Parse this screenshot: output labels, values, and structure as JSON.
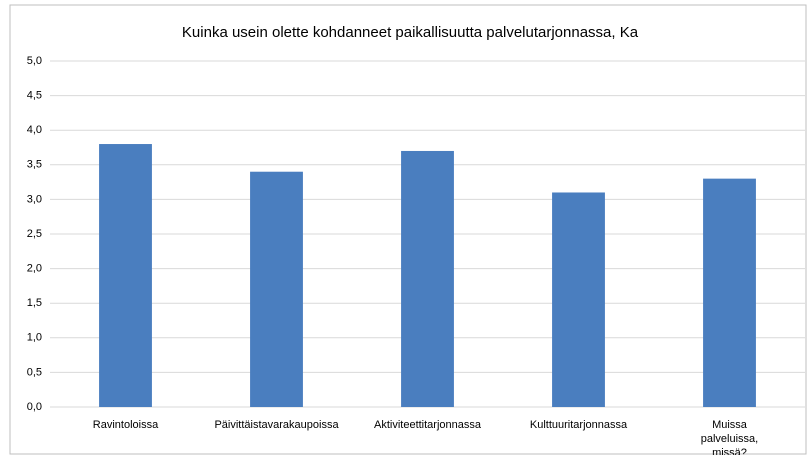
{
  "chart_data": {
    "type": "bar",
    "title": "Kuinka usein olette kohdanneet paikallisuutta palvelutarjonnassa, Ka",
    "categories": [
      "Ravintoloissa",
      "Päivittäistavarakaupoissa",
      "Aktiviteettitarjonnassa",
      "Kulttuuritarjonnassa",
      "Muissa palveluissa, missä?"
    ],
    "values": [
      3.8,
      3.4,
      3.7,
      3.1,
      3.3
    ],
    "color": "#4a7ebf",
    "ylim": [
      0,
      5
    ],
    "yticks": [
      {
        "value": 0,
        "label": "0,0"
      },
      {
        "value": 0.5,
        "label": "0,5"
      },
      {
        "value": 1,
        "label": "1,0"
      },
      {
        "value": 1.5,
        "label": "1,5"
      },
      {
        "value": 2,
        "label": "2,0"
      },
      {
        "value": 2.5,
        "label": "2,5"
      },
      {
        "value": 3,
        "label": "3,0"
      },
      {
        "value": 3.5,
        "label": "3,5"
      },
      {
        "value": 4,
        "label": "4,0"
      },
      {
        "value": 4.5,
        "label": "4,5"
      },
      {
        "value": 5,
        "label": "5,0"
      }
    ],
    "grid": true
  }
}
